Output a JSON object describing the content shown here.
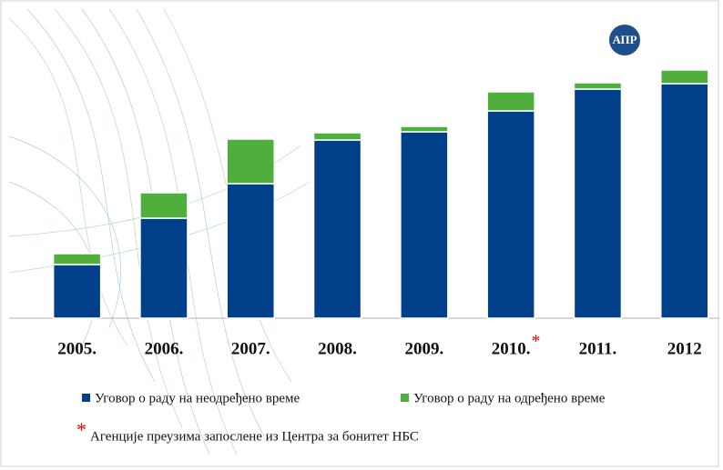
{
  "chart_data": {
    "type": "stacked_bar",
    "logo": "АПР",
    "categories": [
      "2005.",
      "2006.",
      "2007.",
      "2008.",
      "2009.",
      "2010.",
      "2011.",
      "2012"
    ],
    "series": [
      {
        "name": "Уговор о раду на неодређено време",
        "color": "#003f8a",
        "values": [
          59,
          110,
          148,
          196,
          205,
          228,
          252,
          258
        ]
      },
      {
        "name": "Уговор о раду на одређено време",
        "color": "#4fae3c",
        "values": [
          12,
          28,
          49,
          8,
          6,
          21,
          7,
          15
        ]
      }
    ],
    "ylim": [
      0,
      280
    ],
    "note_marker": "*",
    "note_category": 5,
    "note": "Агенције преузима запослене из Центра за бонитет НБС"
  }
}
